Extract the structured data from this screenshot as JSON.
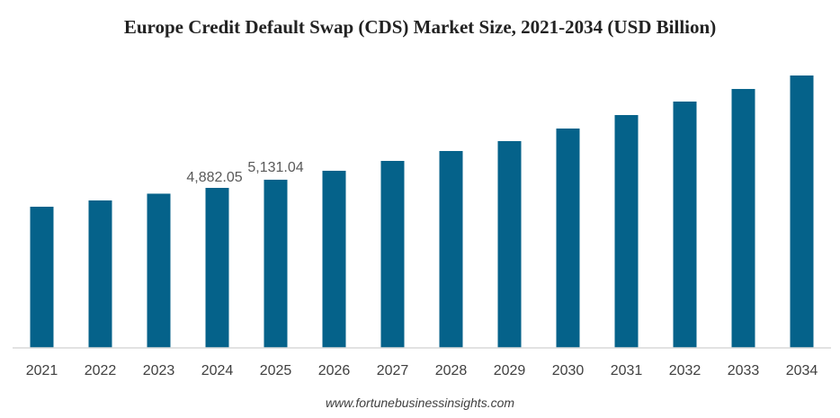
{
  "chart_data": {
    "type": "bar",
    "title": "Europe Credit Default Swap (CDS) Market Size, 2021-2034 (USD Billion)",
    "xlabel": "",
    "ylabel": "",
    "categories": [
      "2021",
      "2022",
      "2023",
      "2024",
      "2025",
      "2026",
      "2027",
      "2028",
      "2029",
      "2030",
      "2031",
      "2032",
      "2033",
      "2034"
    ],
    "values": [
      4307,
      4499,
      4705,
      4882.05,
      5131.04,
      5404,
      5705,
      6007,
      6309,
      6693,
      7104,
      7516,
      7900,
      8311
    ],
    "data_labels": {
      "3": "4,882.05",
      "4": "5,131.04"
    },
    "ylim": [
      0,
      8500
    ],
    "grid": false,
    "bar_color": "#05628A"
  },
  "source": "www.fortunebusinessinsights.com"
}
